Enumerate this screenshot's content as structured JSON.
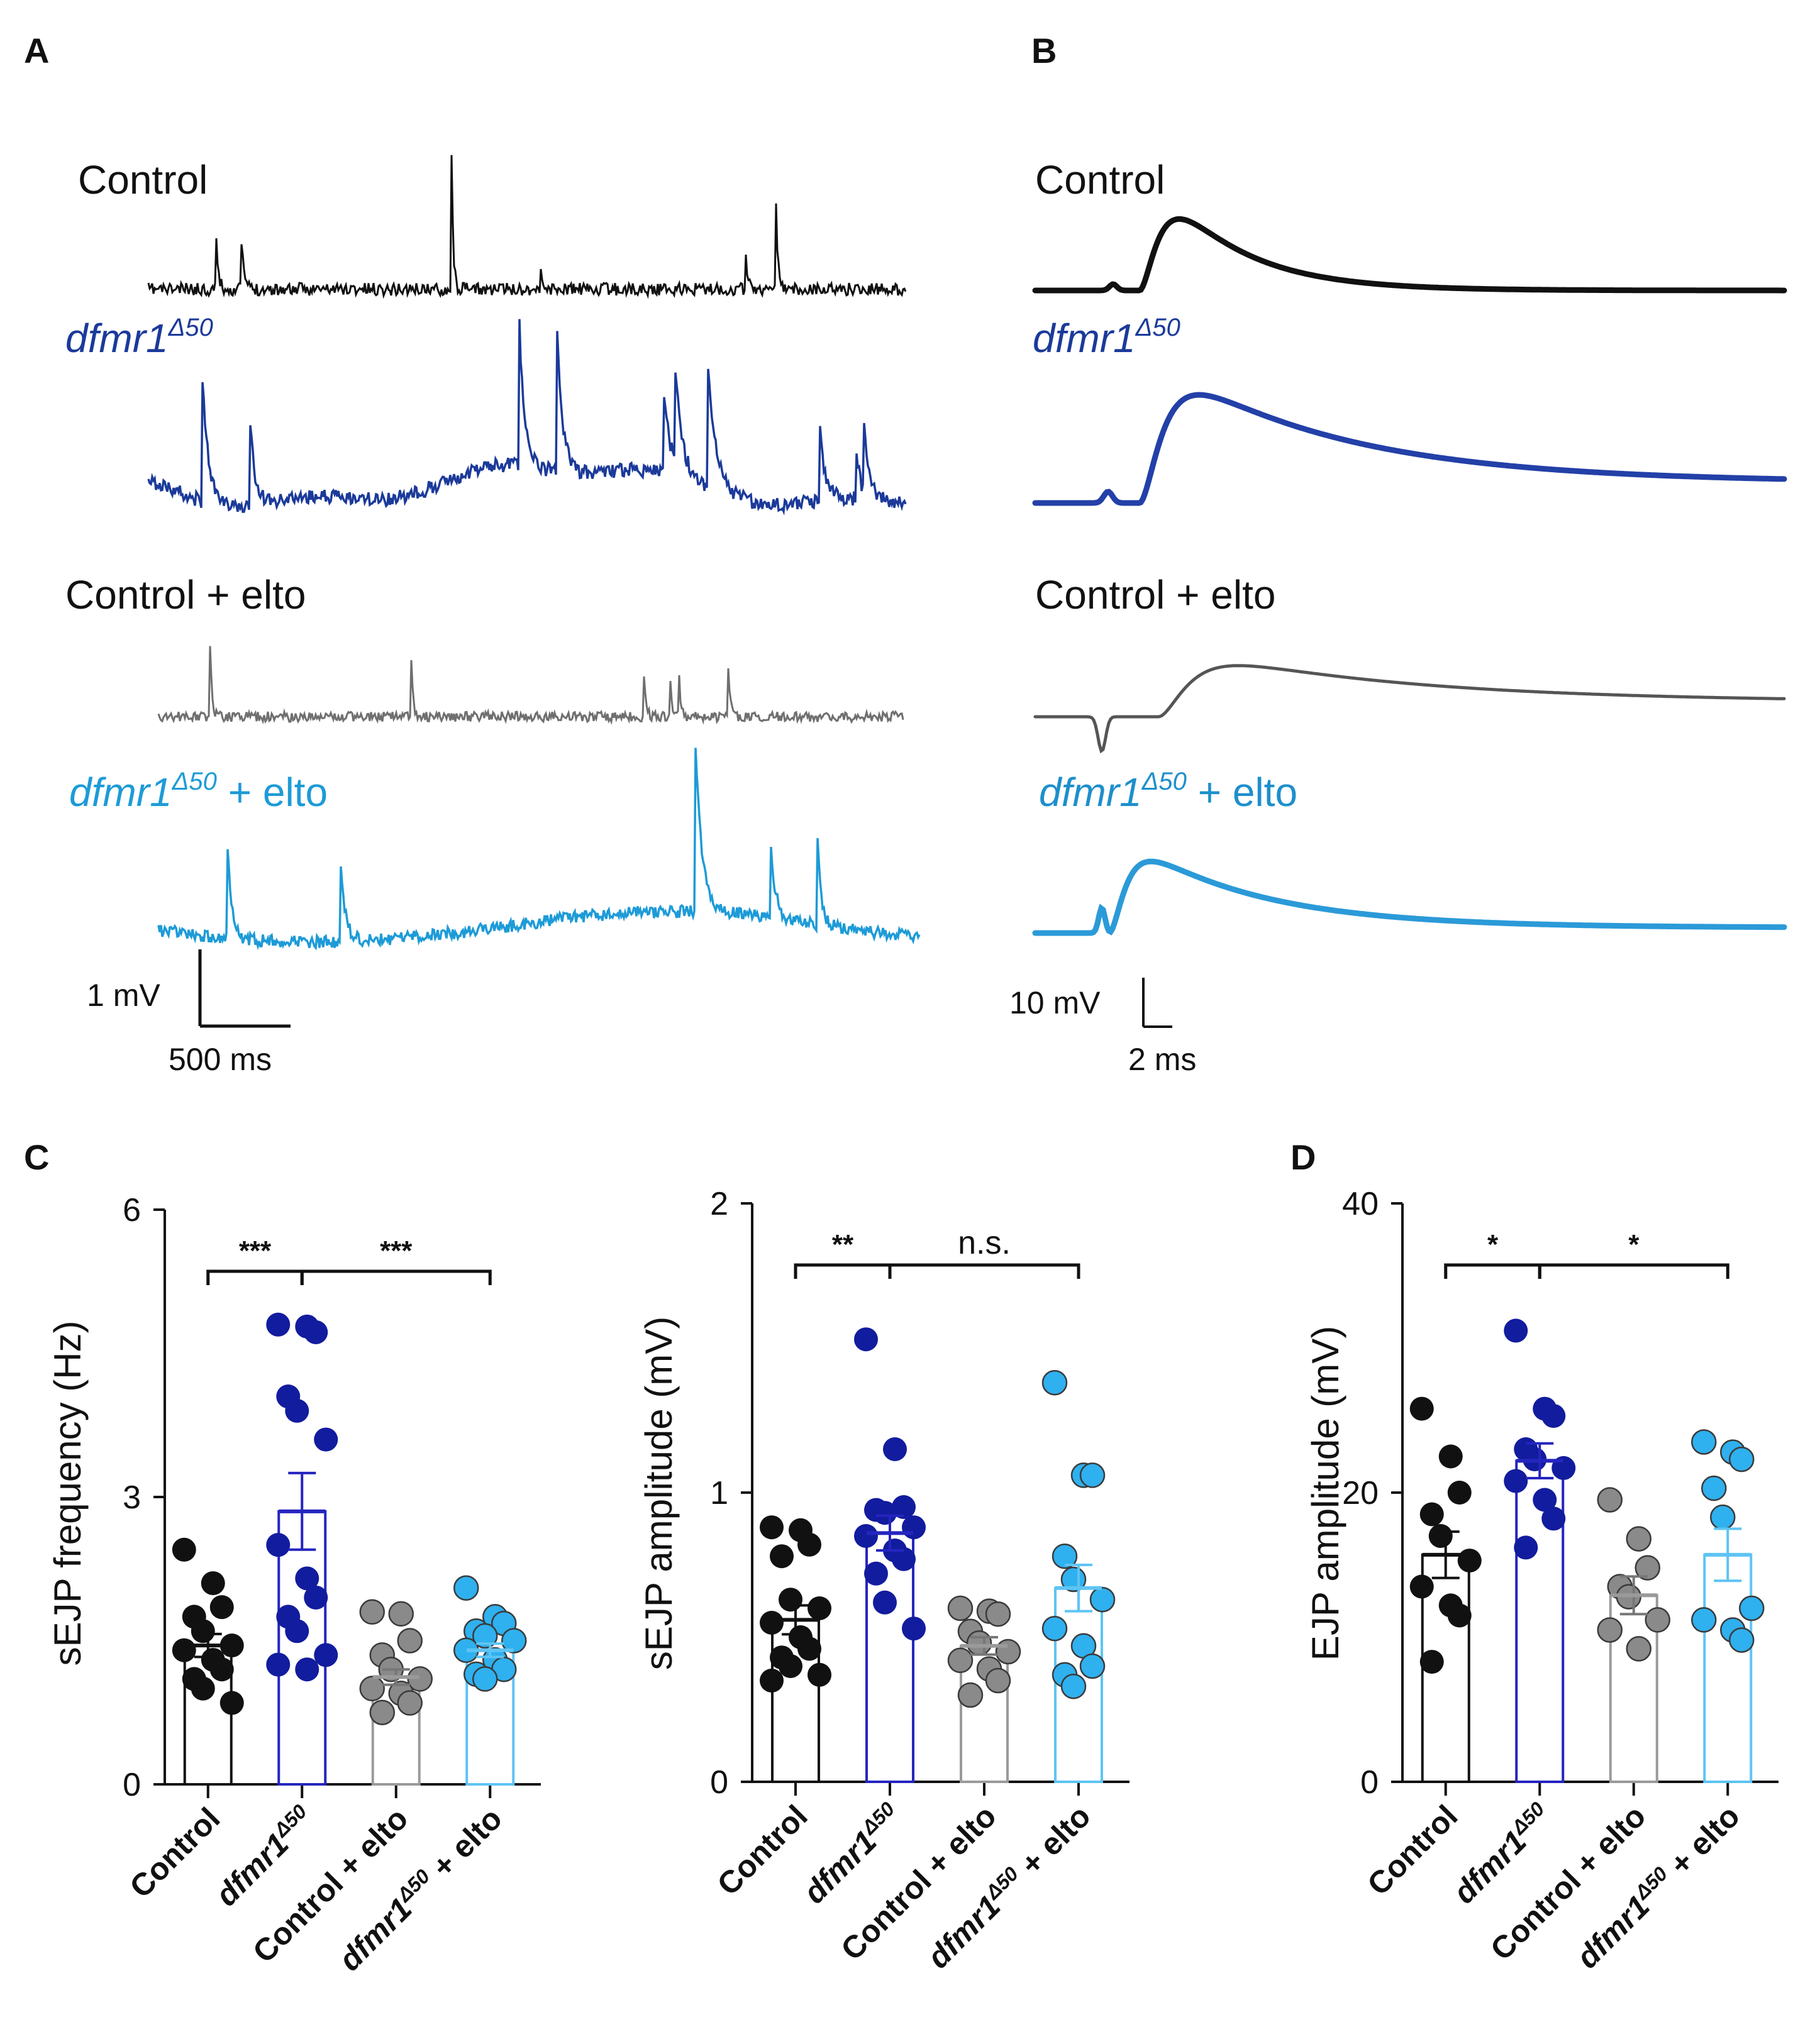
{
  "figure": {
    "panel_letters": [
      "A",
      "B",
      "C",
      "D"
    ],
    "colors": {
      "control": "#111111",
      "dfmr1": "#1b3a9a",
      "control_elto": "#6f6f6f",
      "dfmr1_elto": "#1d9bd7",
      "dot_dfmr1": "#121c9e",
      "dot_control_elto": "#8a8a8a",
      "dot_dfmr1_elto": "#2fb0ef",
      "bar_dfmr1": "#2525c0",
      "bar_control_elto": "#9a9a9a",
      "bar_dfmr1_elto": "#5ec4f3"
    }
  },
  "panelA": {
    "letter": "A",
    "label_control": "Control",
    "label_dfmr1": "dfmr1",
    "label_dfmr1_sup": "Δ50",
    "label_control_elto": "Control + elto",
    "label_dfmr1_elto_prefix": "dfmr1",
    "label_dfmr1_elto_sup": "Δ50",
    "label_dfmr1_elto_suffix": " + elto",
    "scale_y": "1 mV",
    "scale_x": "500 ms"
  },
  "panelB": {
    "letter": "B",
    "label_control": "Control",
    "label_dfmr1": "dfmr1",
    "label_dfmr1_sup": "Δ50",
    "label_control_elto": "Control + elto",
    "label_dfmr1_elto_prefix": "dfmr1",
    "label_dfmr1_elto_sup": "Δ50",
    "label_dfmr1_elto_suffix": " + elto",
    "scale_y": "10 mV",
    "scale_x": "2 ms"
  },
  "panelC": {
    "letter": "C"
  },
  "panelD": {
    "letter": "D"
  },
  "categories": {
    "control": "Control",
    "dfmr1": "dfmr1",
    "dfmr1_sup": "Δ50",
    "control_elto": "Control + elto",
    "dfmr1_elto_prefix": "dfmr1",
    "dfmr1_elto_sup": "Δ50",
    "dfmr1_elto_suffix": " + elto"
  },
  "chart_data": [
    {
      "id": "sEJP_frequency",
      "type": "bar",
      "title": "",
      "ylabel": "sEJP frequency (Hz)",
      "ylim": [
        0,
        6
      ],
      "yticks": [
        "0",
        "3",
        "6"
      ],
      "categories": [
        "Control",
        "dfmr1Δ50",
        "Control + elto",
        "dfmr1Δ50 + elto"
      ],
      "values": [
        1.45,
        2.85,
        1.12,
        1.4
      ],
      "sem": [
        0.12,
        0.4,
        0.08,
        0.07
      ],
      "points": [
        [
          2.45,
          2.1,
          1.85,
          1.75,
          1.6,
          1.45,
          1.4,
          1.3,
          1.2,
          1.1,
          1.0,
          0.85
        ],
        [
          4.8,
          4.78,
          4.72,
          4.05,
          3.9,
          3.6,
          2.5,
          2.15,
          1.95,
          1.75,
          1.6,
          1.35,
          1.25,
          1.2
        ],
        [
          1.8,
          1.78,
          1.5,
          1.35,
          1.2,
          1.1,
          1.0,
          0.95,
          0.85,
          0.75
        ],
        [
          2.05,
          1.75,
          1.68,
          1.6,
          1.55,
          1.5,
          1.4,
          1.3,
          1.2,
          1.15,
          1.1
        ]
      ],
      "comparisons": [
        {
          "label": "***",
          "from": 0,
          "to": 1
        },
        {
          "label": "***",
          "from": 1,
          "to": 3
        }
      ]
    },
    {
      "id": "sEJP_amplitude",
      "type": "bar",
      "title": "",
      "ylabel": "sEJP amplitude (mV)",
      "ylim": [
        0,
        2
      ],
      "yticks": [
        "0",
        "1",
        "2"
      ],
      "categories": [
        "Control",
        "dfmr1Δ50",
        "Control + elto",
        "dfmr1Δ50 + elto"
      ],
      "values": [
        0.56,
        0.86,
        0.47,
        0.67
      ],
      "sem": [
        0.05,
        0.06,
        0.03,
        0.08
      ],
      "points": [
        [
          0.88,
          0.87,
          0.82,
          0.78,
          0.63,
          0.6,
          0.55,
          0.5,
          0.46,
          0.43,
          0.4,
          0.37,
          0.35
        ],
        [
          1.53,
          1.15,
          0.95,
          0.94,
          0.93,
          0.88,
          0.85,
          0.8,
          0.77,
          0.72,
          0.62,
          0.53
        ],
        [
          0.6,
          0.59,
          0.58,
          0.52,
          0.48,
          0.45,
          0.42,
          0.39,
          0.35,
          0.3
        ],
        [
          1.38,
          1.06,
          1.06,
          0.78,
          0.7,
          0.63,
          0.53,
          0.47,
          0.4,
          0.37,
          0.33
        ]
      ],
      "comparisons": [
        {
          "label": "**",
          "from": 0,
          "to": 1
        },
        {
          "label": "n.s.",
          "from": 1,
          "to": 3
        }
      ]
    },
    {
      "id": "EJP_amplitude",
      "type": "bar",
      "title": "",
      "ylabel": "EJP amplitude (mV)",
      "ylim": [
        0,
        40
      ],
      "yticks": [
        "0",
        "20",
        "40"
      ],
      "categories": [
        "Control",
        "dfmr1Δ50",
        "Control + elto",
        "dfmr1Δ50 + elto"
      ],
      "values": [
        15.7,
        22.2,
        12.9,
        15.7
      ],
      "sem": [
        1.6,
        1.2,
        1.3,
        1.8
      ],
      "points": [
        [
          25.8,
          22.5,
          20.0,
          18.5,
          17.0,
          15.3,
          13.5,
          12.2,
          11.5,
          8.3
        ],
        [
          31.2,
          25.8,
          25.3,
          23.0,
          22.3,
          21.7,
          20.8,
          19.5,
          18.2,
          16.2
        ],
        [
          19.5,
          16.8,
          14.8,
          13.5,
          12.8,
          11.2,
          10.5,
          9.2
        ],
        [
          23.5,
          22.8,
          22.3,
          20.3,
          18.3,
          12.0,
          11.2,
          10.5,
          9.8
        ]
      ],
      "comparisons": [
        {
          "label": "*",
          "from": 0,
          "to": 1
        },
        {
          "label": "*",
          "from": 1,
          "to": 3
        }
      ]
    }
  ]
}
